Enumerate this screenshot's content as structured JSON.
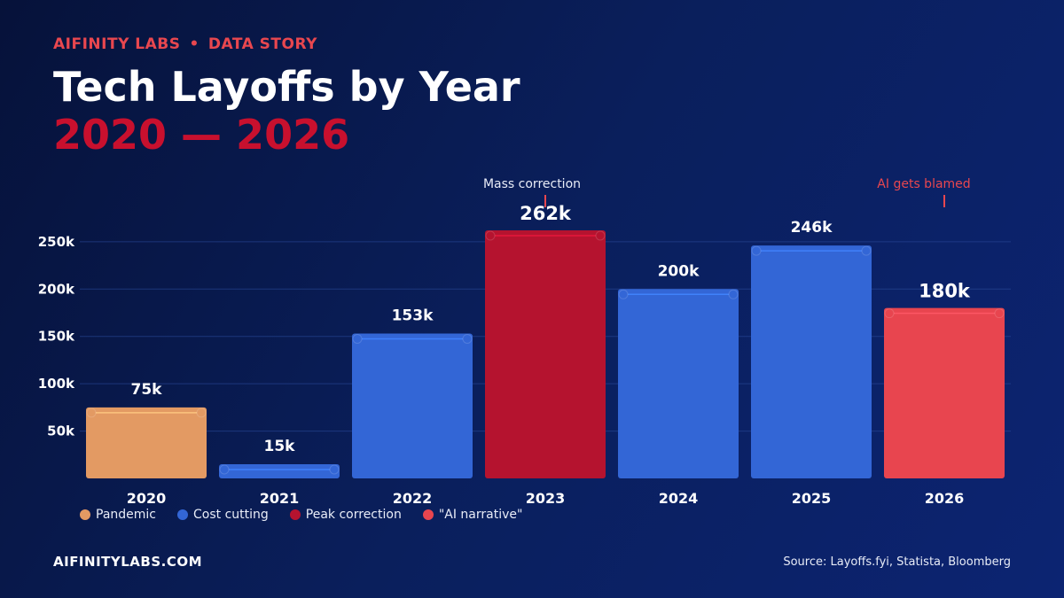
{
  "header": {
    "brand": "AIFINITY LABS",
    "separator": "•",
    "section": "DATA STORY",
    "title": "Tech Layoffs by Year",
    "subtitle": "2020 — 2026"
  },
  "chart_data": {
    "type": "bar",
    "categories": [
      "2020",
      "2021",
      "2022",
      "2023",
      "2024",
      "2025",
      "2026"
    ],
    "values": [
      75,
      15,
      153,
      262,
      200,
      246,
      180
    ],
    "value_labels": [
      "75k",
      "15k",
      "153k",
      "262k",
      "200k",
      "246k",
      "180k"
    ],
    "bar_groups": [
      "Pandemic",
      "Cost cutting",
      "Cost cutting",
      "Peak correction",
      "Cost cutting",
      "Cost cutting",
      "\"AI narrative\""
    ],
    "yticks": [
      50,
      100,
      150,
      200,
      250
    ],
    "ytick_labels": [
      "50k",
      "100k",
      "150k",
      "200k",
      "250k"
    ],
    "ylim": [
      0,
      262
    ],
    "grid": true,
    "legend_placement": "bottom-left",
    "legend": [
      {
        "name": "Pandemic",
        "color": "#e39a63"
      },
      {
        "name": "Cost cutting",
        "color": "#3366d6"
      },
      {
        "name": "Peak correction",
        "color": "#b5132f"
      },
      {
        "name": "\"AI narrative\"",
        "color": "#e8454f"
      }
    ],
    "annotations": [
      {
        "text": "Mass correction",
        "category": "2023",
        "color": "#e8ecf7"
      },
      {
        "text": "AI gets blamed",
        "category": "2026",
        "color": "#e8474f"
      }
    ]
  },
  "colors": {
    "accent_red": "#e8474f",
    "title_red": "#c8102e",
    "background": "#0a1f5c"
  },
  "footer": {
    "site": "AIFINITYLABS.COM",
    "source": "Source: Layoffs.fyi, Statista, Bloomberg"
  }
}
